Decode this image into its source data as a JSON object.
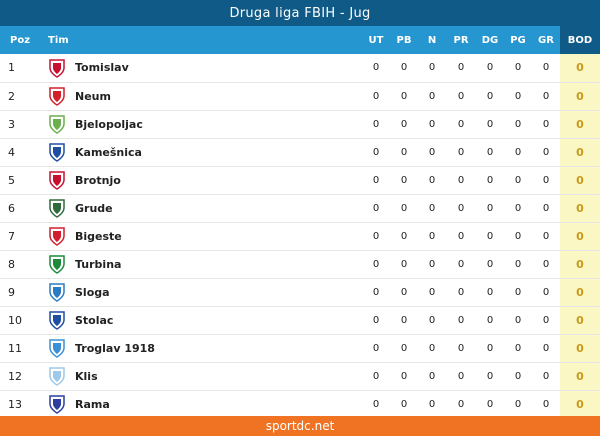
{
  "title": "Druga liga FBIH - Jug",
  "headers": {
    "pos": "Poz",
    "team": "Tim",
    "ut": "UT",
    "pb": "PB",
    "n": "N",
    "pr": "PR",
    "dg": "DG",
    "pg": "PG",
    "gr": "GR",
    "bod": "BOD"
  },
  "rows": [
    {
      "pos": "1",
      "team": "Tomislav",
      "ut": "0",
      "pb": "0",
      "n": "0",
      "pr": "0",
      "dg": "0",
      "pg": "0",
      "gr": "0",
      "bod": "0",
      "crest": "tomislav-crest-icon",
      "crest_color": "#c8102e"
    },
    {
      "pos": "2",
      "team": "Neum",
      "ut": "0",
      "pb": "0",
      "n": "0",
      "pr": "0",
      "dg": "0",
      "pg": "0",
      "gr": "0",
      "bod": "0",
      "crest": "neum-crest-icon",
      "crest_color": "#d21f2b"
    },
    {
      "pos": "3",
      "team": "Bjelopoljac",
      "ut": "0",
      "pb": "0",
      "n": "0",
      "pr": "0",
      "dg": "0",
      "pg": "0",
      "gr": "0",
      "bod": "0",
      "crest": "bjelopoljac-crest-icon",
      "crest_color": "#6ab04c"
    },
    {
      "pos": "4",
      "team": "Kamešnica",
      "ut": "0",
      "pb": "0",
      "n": "0",
      "pr": "0",
      "dg": "0",
      "pg": "0",
      "gr": "0",
      "bod": "0",
      "crest": "kamesnica-crest-icon",
      "crest_color": "#1f4fa3"
    },
    {
      "pos": "5",
      "team": "Brotnjo",
      "ut": "0",
      "pb": "0",
      "n": "0",
      "pr": "0",
      "dg": "0",
      "pg": "0",
      "gr": "0",
      "bod": "0",
      "crest": "brotnjo-crest-icon",
      "crest_color": "#c8102e"
    },
    {
      "pos": "6",
      "team": "Grude",
      "ut": "0",
      "pb": "0",
      "n": "0",
      "pr": "0",
      "dg": "0",
      "pg": "0",
      "gr": "0",
      "bod": "0",
      "crest": "grude-crest-icon",
      "crest_color": "#2e6b3a"
    },
    {
      "pos": "7",
      "team": "Bigeste",
      "ut": "0",
      "pb": "0",
      "n": "0",
      "pr": "0",
      "dg": "0",
      "pg": "0",
      "gr": "0",
      "bod": "0",
      "crest": "bigeste-crest-icon",
      "crest_color": "#d21f2b"
    },
    {
      "pos": "8",
      "team": "Turbina",
      "ut": "0",
      "pb": "0",
      "n": "0",
      "pr": "0",
      "dg": "0",
      "pg": "0",
      "gr": "0",
      "bod": "0",
      "crest": "turbina-crest-icon",
      "crest_color": "#1c8a3a"
    },
    {
      "pos": "9",
      "team": "Sloga",
      "ut": "0",
      "pb": "0",
      "n": "0",
      "pr": "0",
      "dg": "0",
      "pg": "0",
      "gr": "0",
      "bod": "0",
      "crest": "sloga-crest-icon",
      "crest_color": "#2a7dc4"
    },
    {
      "pos": "10",
      "team": "Stolac",
      "ut": "0",
      "pb": "0",
      "n": "0",
      "pr": "0",
      "dg": "0",
      "pg": "0",
      "gr": "0",
      "bod": "0",
      "crest": "stolac-crest-icon",
      "crest_color": "#1f4fa3"
    },
    {
      "pos": "11",
      "team": "Troglav 1918",
      "ut": "0",
      "pb": "0",
      "n": "0",
      "pr": "0",
      "dg": "0",
      "pg": "0",
      "gr": "0",
      "bod": "0",
      "crest": "troglav-crest-icon",
      "crest_color": "#3a8fd6"
    },
    {
      "pos": "12",
      "team": "Klis",
      "ut": "0",
      "pb": "0",
      "n": "0",
      "pr": "0",
      "dg": "0",
      "pg": "0",
      "gr": "0",
      "bod": "0",
      "crest": "klis-crest-icon",
      "crest_color": "#9ec9e8"
    },
    {
      "pos": "13",
      "team": "Rama",
      "ut": "0",
      "pb": "0",
      "n": "0",
      "pr": "0",
      "dg": "0",
      "pg": "0",
      "gr": "0",
      "bod": "0",
      "crest": "rama-crest-icon",
      "crest_color": "#2a3f9e"
    }
  ],
  "footer": "sportdc.net",
  "colors": {
    "title_bg": "#0f5a86",
    "header_bg": "#2596cf",
    "bod_bg": "#fbf7c4",
    "bod_text": "#c79a1a",
    "footer_bg": "#f07324"
  }
}
